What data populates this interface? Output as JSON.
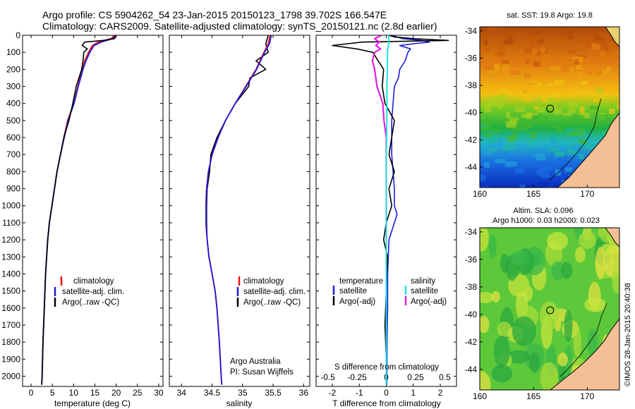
{
  "header": {
    "line1": "Argo profile: CS 5904262_54 23-Jan-2015 20150123_1798 39.702S 166.547E",
    "line2": "Climatology: CARS2009. Satellite-adjusted climatology: synTS_20150121.nc (2.8d earlier)"
  },
  "colors": {
    "climatology": "#ee1111",
    "satellite": "#1d1ddd",
    "argo": "#000000",
    "salinity_satellite": "#22e0e0",
    "salinity_argo": "#e020e0",
    "land": "#f4bf95"
  },
  "credit": "©IMOS 28-Jan-2015 20:40:38",
  "annotation": {
    "line1": "Argo Australia",
    "line2": "PI: Susan Wijffels"
  },
  "legend": {
    "climatology": "climatology",
    "satellite_adj": "satellite-adj. clim.",
    "argo_raw": "Argo(..raw -QC)",
    "temp_header": "temperature",
    "sal_header": "salinity",
    "satellite": "satellite",
    "argo_adj": "Argo(-adj)"
  },
  "chart_data": [
    {
      "type": "line",
      "id": "temperature",
      "xlabel": "temperature (deg C)",
      "ylabel": "",
      "xlim": [
        -2,
        31
      ],
      "ylim": [
        0,
        2060
      ],
      "y_reversed": true,
      "xticks": [
        0,
        5,
        10,
        15,
        20,
        25,
        30
      ],
      "xtick_labels": [
        "0",
        "5",
        "10",
        "15",
        "20",
        "25",
        "30"
      ],
      "yticks": [
        0,
        100,
        200,
        300,
        400,
        500,
        600,
        700,
        800,
        900,
        1000,
        1100,
        1200,
        1300,
        1400,
        1500,
        1600,
        1700,
        1800,
        1900,
        2000
      ],
      "ytick_labels": [
        "0",
        "100",
        "200",
        "300",
        "400",
        "500",
        "600",
        "700",
        "800",
        "900",
        "1000",
        "1100",
        "1200",
        "1300",
        "1400",
        "1500",
        "1600",
        "1700",
        "1800",
        "1900",
        "2000"
      ],
      "legend_position": "lower-center",
      "series": [
        {
          "name": "climatology",
          "color": "#ee1111",
          "depth": [
            0,
            20,
            40,
            60,
            100,
            150,
            200,
            300,
            400,
            500,
            600,
            700,
            800,
            900,
            1000,
            1100,
            1200,
            1400,
            1600,
            1800,
            2000,
            2050
          ],
          "values": [
            19.6,
            18.8,
            15.8,
            14.4,
            13.5,
            12.6,
            12.0,
            11.0,
            10.0,
            8.6,
            7.7,
            6.9,
            6.1,
            5.5,
            4.9,
            4.3,
            3.9,
            3.4,
            3.1,
            2.8,
            2.6,
            2.5
          ]
        },
        {
          "name": "satellite-adj. clim.",
          "color": "#1d1ddd",
          "depth": [
            0,
            20,
            40,
            60,
            100,
            150,
            200,
            300,
            400,
            500,
            600,
            700,
            800,
            900,
            1000,
            1100,
            1200,
            1400,
            1600,
            1800,
            2000,
            2050
          ],
          "values": [
            19.8,
            19.2,
            16.5,
            14.8,
            13.8,
            12.9,
            12.2,
            11.1,
            10.1,
            8.7,
            7.8,
            6.9,
            6.1,
            5.5,
            4.9,
            4.3,
            3.9,
            3.4,
            3.1,
            2.8,
            2.6,
            2.5
          ]
        },
        {
          "name": "Argo(..raw -QC)",
          "color": "#000000",
          "depth": [
            0,
            20,
            30,
            40,
            60,
            80,
            100,
            150,
            200,
            300,
            400,
            500,
            600,
            700,
            800,
            900,
            1000,
            1100,
            1200,
            1400,
            1600,
            1800,
            2000,
            2050
          ],
          "values": [
            19.8,
            19.6,
            17.0,
            12.6,
            12.0,
            13.2,
            12.4,
            12.2,
            11.9,
            10.6,
            9.8,
            8.9,
            7.7,
            6.9,
            6.1,
            5.5,
            4.9,
            4.3,
            3.9,
            3.4,
            3.1,
            2.8,
            2.6,
            2.5
          ]
        }
      ]
    },
    {
      "type": "line",
      "id": "salinity",
      "xlabel": "salinity",
      "xlim": [
        33.8,
        36.1
      ],
      "ylim": [
        0,
        2060
      ],
      "y_reversed": true,
      "xticks": [
        34,
        34.5,
        35,
        35.5,
        36
      ],
      "xtick_labels": [
        "34",
        "34.5",
        "35",
        "35.5",
        "36"
      ],
      "legend_position": "lower-center",
      "series": [
        {
          "name": "climatology",
          "color": "#ee1111",
          "depth": [
            0,
            50,
            100,
            200,
            300,
            400,
            500,
            600,
            700,
            800,
            900,
            1000,
            1100,
            1200,
            1300,
            1400,
            1500,
            1600,
            1800,
            2000,
            2050
          ],
          "values": [
            35.45,
            35.42,
            35.35,
            35.22,
            35.05,
            34.88,
            34.72,
            34.6,
            34.5,
            34.44,
            34.41,
            34.4,
            34.4,
            34.42,
            34.45,
            34.5,
            34.55,
            34.58,
            34.62,
            34.65,
            34.66
          ]
        },
        {
          "name": "satellite-adj. clim.",
          "color": "#1d1ddd",
          "depth": [
            0,
            50,
            100,
            200,
            300,
            400,
            500,
            600,
            700,
            800,
            900,
            1000,
            1100,
            1200,
            1300,
            1400,
            1500,
            1600,
            1800,
            2000,
            2050
          ],
          "values": [
            35.47,
            35.44,
            35.36,
            35.23,
            35.06,
            34.88,
            34.72,
            34.6,
            34.5,
            34.44,
            34.41,
            34.4,
            34.4,
            34.42,
            34.45,
            34.5,
            34.55,
            34.58,
            34.62,
            34.65,
            34.66
          ]
        },
        {
          "name": "Argo(..raw -QC)",
          "color": "#000000",
          "depth": [
            0,
            50,
            100,
            150,
            200,
            250,
            300,
            400,
            500,
            600,
            700,
            800,
            900,
            1000,
            1100,
            1200,
            1300,
            1400,
            1500,
            1600,
            1800,
            2000,
            2050
          ],
          "values": [
            35.42,
            35.38,
            35.42,
            35.22,
            35.38,
            35.12,
            35.1,
            34.88,
            34.72,
            34.58,
            34.48,
            34.46,
            34.42,
            34.41,
            34.41,
            34.42,
            34.45,
            34.5,
            34.55,
            34.58,
            34.62,
            34.65,
            34.66
          ]
        }
      ]
    },
    {
      "type": "line",
      "id": "differences",
      "xlabel": "T difference from climatology",
      "xlabel_top": "S difference from climatology",
      "xlim": [
        -2.6,
        2.6
      ],
      "ylim": [
        0,
        2060
      ],
      "y_reversed": true,
      "xticks": [
        -2,
        -1,
        0,
        1,
        2
      ],
      "xtick_labels": [
        "-2",
        "-1",
        "0",
        "1",
        "2"
      ],
      "s_xticks": [
        -0.5,
        -0.25,
        0,
        0.25,
        0.5
      ],
      "s_xtick_labels": [
        "-0.5",
        "-0.25",
        "0",
        "0.25",
        "0.5"
      ],
      "legend_position": "lower-center",
      "series": [
        {
          "name": "temperature satellite",
          "color": "#1d1ddd",
          "depth": [
            0,
            20,
            30,
            40,
            50,
            60,
            80,
            100,
            150,
            200,
            250,
            300,
            400,
            500,
            600,
            700,
            800,
            900,
            1000,
            1050,
            1100,
            1200,
            1400,
            1600,
            1800,
            2000,
            2050
          ],
          "values": [
            0.2,
            0.6,
            1.3,
            1.6,
            1.0,
            0.5,
            0.9,
            0.8,
            0.7,
            0.5,
            0.45,
            0.3,
            0.25,
            0.2,
            0.2,
            0.2,
            0.25,
            0.3,
            0.3,
            0.4,
            0.3,
            0.1,
            0.05,
            0.05,
            0.03,
            0.02,
            0.02
          ]
        },
        {
          "name": "temperature Argo(-adj)",
          "color": "#000000",
          "depth": [
            0,
            10,
            20,
            30,
            40,
            60,
            80,
            100,
            150,
            200,
            300,
            400,
            500,
            600,
            700,
            800,
            900,
            1000,
            1100,
            1200,
            1300,
            1500,
            1700,
            1900,
            2050
          ],
          "values": [
            0.1,
            0.3,
            1.0,
            2.3,
            -0.9,
            -2.0,
            -1.1,
            -0.5,
            -0.3,
            -0.1,
            -0.15,
            -0.05,
            0.3,
            0.2,
            0.1,
            0.3,
            0.1,
            0.2,
            0.0,
            -0.1,
            0.05,
            0.0,
            -0.05,
            0.0,
            0.0
          ]
        },
        {
          "name": "salinity satellite",
          "color": "#22e0e0",
          "depth": [
            0,
            50,
            100,
            200,
            300,
            500,
            700,
            900,
            1100,
            1300,
            1500,
            1700,
            1900,
            2050
          ],
          "values": [
            0.02,
            0.02,
            0.01,
            0.01,
            0.005,
            0.005,
            0.0,
            0.0,
            0.0,
            0.0,
            0.0,
            0.0,
            0.0,
            0.0
          ]
        },
        {
          "name": "salinity Argo(-adj)",
          "color": "#e020e0",
          "depth": [
            0,
            20,
            40,
            60,
            80,
            100,
            150,
            200,
            300,
            400,
            500,
            600,
            800,
            1000,
            1100,
            1200
          ],
          "values": [
            -0.04,
            -0.1,
            -0.06,
            -0.09,
            -0.05,
            -0.1,
            -0.12,
            -0.1,
            -0.08,
            -0.03,
            -0.02,
            0.0,
            0.0,
            0.0,
            0.0,
            0.0
          ]
        }
      ]
    },
    {
      "type": "heatmap",
      "id": "sst_map",
      "title": "sat. SST: 19.8 Argo: 19.8",
      "xlim": [
        160,
        173
      ],
      "ylim": [
        -45.5,
        -33.7
      ],
      "xticks": [
        160,
        165,
        170
      ],
      "xtick_labels": [
        "160",
        "165",
        "170"
      ],
      "yticks": [
        -34,
        -36,
        -38,
        -40,
        -42,
        -44
      ],
      "ytick_labels": [
        "-34",
        "-36",
        "-38",
        "-40",
        "-42",
        "-44"
      ],
      "argo_position": {
        "lon": 166.547,
        "lat": -39.702
      }
    },
    {
      "type": "heatmap",
      "id": "sla_map",
      "title": "Altim. SLA: 0.096",
      "subtitle": "Argo h1000: 0.03 h2000: 0.023",
      "xlim": [
        160,
        173
      ],
      "ylim": [
        -45.5,
        -33.7
      ],
      "xticks": [
        160,
        165,
        170
      ],
      "xtick_labels": [
        "160",
        "165",
        "170"
      ],
      "yticks": [
        -34,
        -36,
        -38,
        -40,
        -42,
        -44
      ],
      "ytick_labels": [
        "-34",
        "-36",
        "-38",
        "-40",
        "-42",
        "-44"
      ],
      "argo_position": {
        "lon": 166.547,
        "lat": -39.702
      }
    }
  ]
}
